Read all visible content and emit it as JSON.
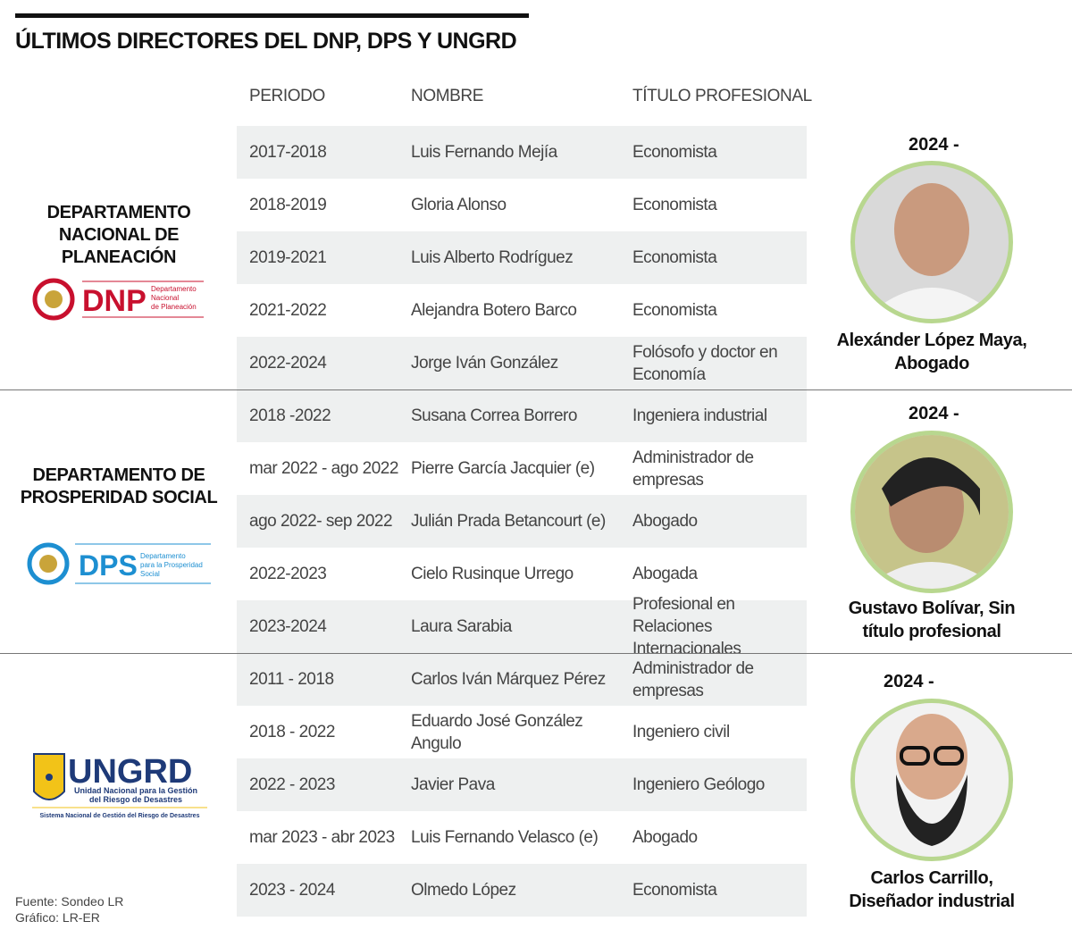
{
  "title": "ÚLTIMOS DIRECTORES DEL DNP, DPS Y UNGRD",
  "headers": {
    "period": "PERIODO",
    "name": "NOMBRE",
    "title": "TÍTULO PROFESIONAL"
  },
  "sections": [
    {
      "org": "DEPARTAMENTO NACIONAL DE PLANEACIÓN",
      "logo": {
        "acronym": "DNP",
        "text": "Departamento Nacional de Planeación",
        "color": "#c8102e"
      },
      "rows": [
        {
          "period": "2017-2018",
          "name": "Luis Fernando Mejía",
          "title": "Economista"
        },
        {
          "period": "2018-2019",
          "name": "Gloria Alonso",
          "title": "Economista"
        },
        {
          "period": "2019-2021",
          "name": "Luis Alberto Rodríguez",
          "title": "Economista"
        },
        {
          "period": "2021-2022",
          "name": "Alejandra Botero Barco",
          "title": "Economista"
        },
        {
          "period": "2022-2024",
          "name": "Jorge Iván González",
          "title": "Folósofo y doctor en Economía"
        }
      ],
      "current": {
        "year": "2024 -",
        "caption": "Alexánder López Maya, Abogado"
      }
    },
    {
      "org": "DEPARTAMENTO DE PROSPERIDAD SOCIAL",
      "logo": {
        "acronym": "DPS",
        "text": "Departamento para la Prosperidad Social",
        "color": "#1d8fd1"
      },
      "rows": [
        {
          "period": "2018 -2022",
          "name": "Susana Correa Borrero",
          "title": "Ingeniera industrial"
        },
        {
          "period": "mar 2022 - ago 2022",
          "name": "Pierre García Jacquier (e)",
          "title": "Administrador de empresas"
        },
        {
          "period": "ago 2022- sep 2022",
          "name": "Julián Prada Betancourt (e)",
          "title": "Abogado"
        },
        {
          "period": "2022-2023",
          "name": "Cielo Rusinque Urrego",
          "title": "Abogada"
        },
        {
          "period": "2023-2024",
          "name": "Laura Sarabia",
          "title": "Profesional en Relaciones Internacionales"
        }
      ],
      "current": {
        "year": "2024 -",
        "caption": "Gustavo Bolívar, Sin título profesional"
      }
    },
    {
      "org": "",
      "logo": {
        "acronym": "UNGRD",
        "text": "Unidad Nacional para la Gestión del Riesgo de Desastres",
        "subtext": "Sistema Nacional de Gestión del Riesgo de Desastres",
        "color": "#1e3a78",
        "accent": "#f2c318"
      },
      "rows": [
        {
          "period": "2011 - 2018",
          "name": "Carlos Iván Márquez Pérez",
          "title": "Administrador de empresas"
        },
        {
          "period": "2018 - 2022",
          "name": "Eduardo José González Angulo",
          "title": "Ingeniero civil"
        },
        {
          "period": "2022 - 2023",
          "name": "Javier Pava",
          "title": "Ingeniero Geólogo"
        },
        {
          "period": "mar 2023 - abr 2023",
          "name": "Luis Fernando Velasco (e)",
          "title": "Abogado"
        },
        {
          "period": "2023 - 2024",
          "name": "Olmedo López",
          "title": "Economista"
        }
      ],
      "current": {
        "year": "2024 -",
        "caption": "Carlos Carrillo, Diseñador industrial"
      }
    }
  ],
  "source": "Fuente: Sondeo LR",
  "graphic": "Gráfico: LR-ER"
}
